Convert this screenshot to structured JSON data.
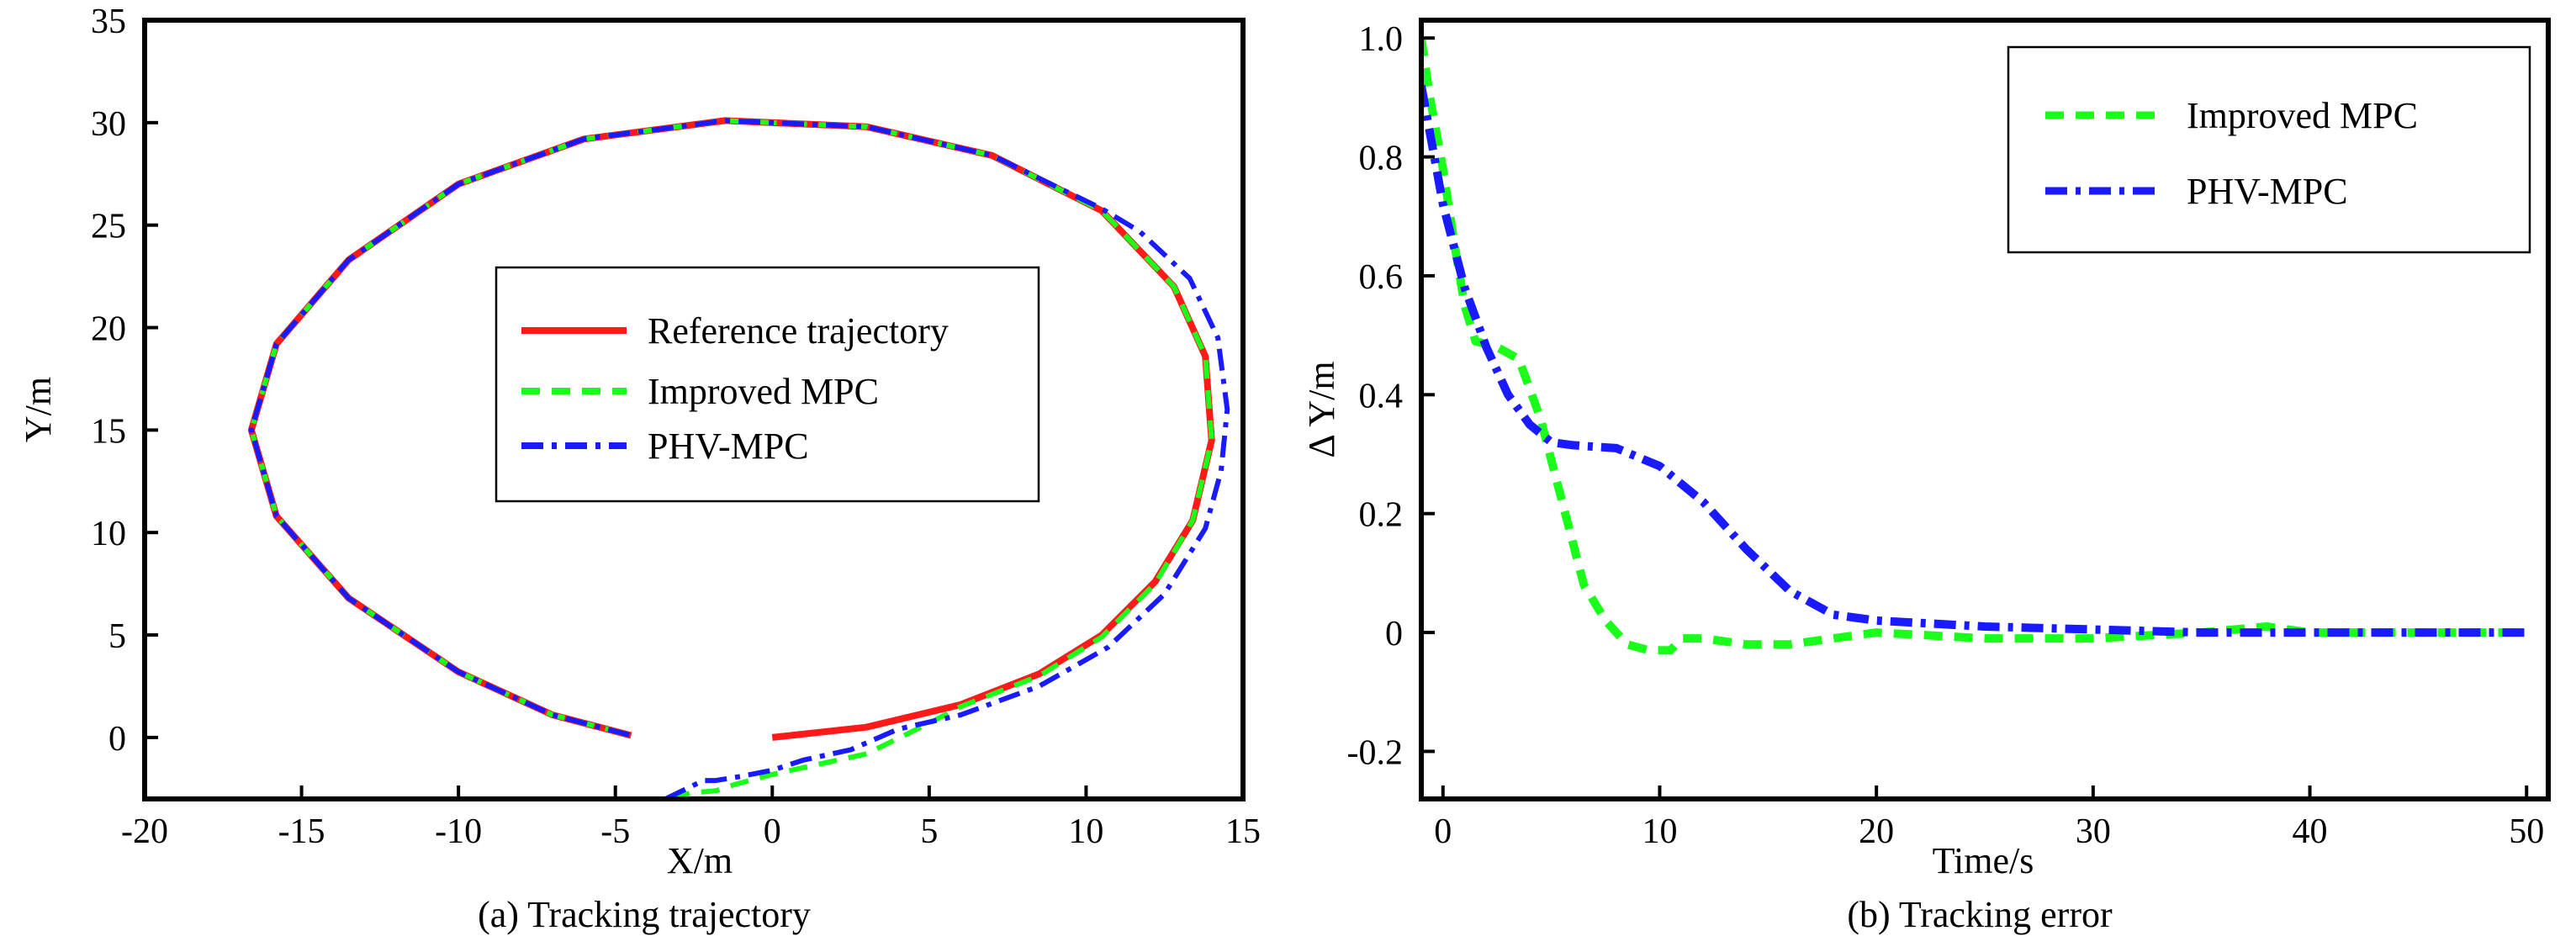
{
  "colors": {
    "reference": "#ff1a1a",
    "improved_mpc": "#1aff1a",
    "phv_mpc": "#1a1aff",
    "axes": "#000000",
    "background": "#ffffff"
  },
  "chart_data": [
    {
      "id": "a",
      "type": "line",
      "caption": "(a) Tracking trajectory",
      "xlabel": "X/m",
      "ylabel": "Y/m",
      "xlim": [
        -20,
        15
      ],
      "ylim": [
        -3,
        35
      ],
      "xticks": [
        -20,
        -15,
        -10,
        -5,
        0,
        5,
        10,
        15
      ],
      "yticks": [
        0,
        5,
        10,
        15,
        20,
        25,
        30,
        35
      ],
      "grid": false,
      "legend": {
        "placement": "center-right",
        "entries": [
          "Reference trajectory",
          "Improved MPC",
          "PHV-MPC"
        ]
      },
      "series": [
        {
          "name": "Reference trajectory",
          "style": "solid",
          "x": [
            0,
            3,
            6,
            8.5,
            10.5,
            12.2,
            13.4,
            14.0,
            13.8,
            12.8,
            10.5,
            7,
            3,
            -1.5,
            -6,
            -10,
            -13.5,
            -15.8,
            -16.6,
            -15.8,
            -13.5,
            -10,
            -7,
            -4.5
          ],
          "y": [
            0,
            0.5,
            1.6,
            3.1,
            5.0,
            7.6,
            10.6,
            14.5,
            18.6,
            22.0,
            25.7,
            28.4,
            29.8,
            30.1,
            29.2,
            27.0,
            23.3,
            19.2,
            15,
            10.8,
            6.8,
            3.2,
            1.1,
            0.1
          ]
        },
        {
          "name": "Improved MPC",
          "style": "dashed",
          "x": [
            -3.2,
            -2.6,
            -1.8,
            -1.2,
            0,
            1.5,
            3,
            5,
            6,
            8.5,
            10.5,
            12.2,
            13.4,
            14.0,
            13.8,
            12.8,
            10.5,
            7,
            3,
            -1.5,
            -6,
            -10,
            -13.5,
            -15.8,
            -16.6,
            -15.8,
            -13.5,
            -10,
            -7,
            -4.5
          ],
          "y": [
            -3.0,
            -2.7,
            -2.6,
            -2.3,
            -1.8,
            -1.3,
            -0.8,
            0.7,
            1.5,
            3.0,
            4.9,
            7.5,
            10.6,
            14.5,
            18.6,
            22.0,
            25.7,
            28.4,
            29.8,
            30.1,
            29.2,
            27.0,
            23.3,
            19.2,
            15,
            10.8,
            6.8,
            3.2,
            1.1,
            0.1
          ]
        },
        {
          "name": "PHV-MPC",
          "style": "dashdot",
          "x": [
            -3.4,
            -3.0,
            -2.6,
            -2.2,
            -1.8,
            -1.0,
            0,
            1,
            2.5,
            4,
            6,
            8.5,
            10.7,
            12.5,
            13.8,
            14.3,
            14.5,
            14.2,
            13.3,
            11.7,
            10.5,
            7,
            3,
            -1.5,
            -6,
            -10,
            -13.5,
            -15.8,
            -16.6,
            -15.8,
            -13.5,
            -10,
            -7,
            -4.5
          ],
          "y": [
            -3.0,
            -2.7,
            -2.4,
            -2.1,
            -2.1,
            -1.9,
            -1.6,
            -1.1,
            -0.6,
            0.4,
            1.1,
            2.5,
            4.4,
            7.0,
            10.2,
            13.0,
            16.0,
            19.5,
            22.4,
            24.7,
            25.8,
            28.4,
            29.8,
            30.1,
            29.2,
            27.0,
            23.3,
            19.2,
            15,
            10.8,
            6.8,
            3.2,
            1.1,
            0.1
          ]
        }
      ]
    },
    {
      "id": "b",
      "type": "line",
      "caption": "(b) Tracking error",
      "xlabel": "Time/s",
      "ylabel": "Δ Y/m",
      "xlim": [
        -1,
        51
      ],
      "ylim": [
        -0.28,
        1.03
      ],
      "xticks": [
        0,
        10,
        20,
        30,
        40,
        50
      ],
      "yticks": [
        -0.2,
        0,
        0.2,
        0.4,
        0.6,
        0.8,
        1.0
      ],
      "ytick_labels": [
        "-0.2",
        "0",
        "0.2",
        "0.4",
        "0.6",
        "0.8",
        "1.0"
      ],
      "grid": false,
      "legend": {
        "placement": "top-right",
        "entries": [
          "Improved MPC",
          "PHV-MPC"
        ]
      },
      "series": [
        {
          "name": "Improved MPC",
          "style": "dashed",
          "x": [
            -1,
            -0.6,
            0,
            0.5,
            1,
            1.5,
            2.5,
            3.5,
            4.5,
            5.5,
            6.5,
            7.5,
            8.5,
            9.5,
            10.5,
            11,
            12,
            14,
            16,
            18,
            20,
            25,
            30,
            35,
            38,
            40,
            45,
            50
          ],
          "y": [
            1.0,
            0.9,
            0.78,
            0.66,
            0.55,
            0.49,
            0.48,
            0.46,
            0.36,
            0.22,
            0.08,
            0.02,
            -0.02,
            -0.03,
            -0.03,
            -0.01,
            -0.01,
            -0.02,
            -0.02,
            -0.01,
            0.0,
            -0.01,
            -0.01,
            0.0,
            0.01,
            0.0,
            0.0,
            0.0
          ]
        },
        {
          "name": "PHV-MPC",
          "style": "dashdot",
          "x": [
            -1,
            -0.5,
            0,
            1,
            2,
            3,
            4,
            5,
            6,
            8,
            10,
            12,
            14,
            16,
            18,
            20,
            25,
            30,
            35,
            40,
            45,
            50
          ],
          "y": [
            0.92,
            0.82,
            0.72,
            0.58,
            0.48,
            0.4,
            0.35,
            0.32,
            0.315,
            0.31,
            0.28,
            0.22,
            0.14,
            0.07,
            0.03,
            0.02,
            0.01,
            0.005,
            0.0,
            0.0,
            0.0,
            0.0
          ]
        }
      ]
    }
  ]
}
